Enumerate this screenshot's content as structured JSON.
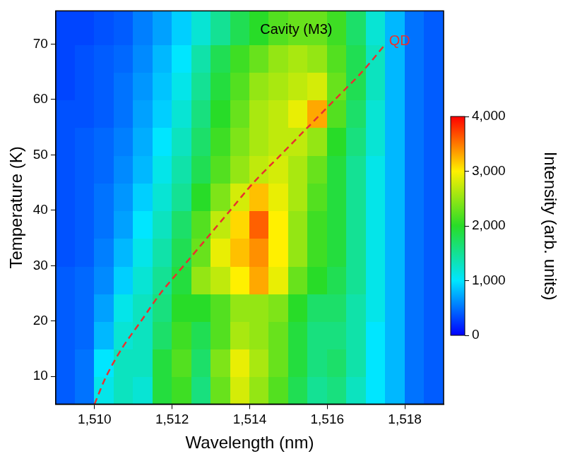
{
  "chart_data": {
    "type": "heatmap",
    "xlabel": "Wavelength (nm)",
    "ylabel": "Temperature (K)",
    "xlim": [
      1509,
      1519
    ],
    "xticks": [
      1510,
      1512,
      1514,
      1516,
      1518
    ],
    "ylim": [
      5,
      76
    ],
    "yticks": [
      10,
      20,
      30,
      40,
      50,
      60,
      70
    ],
    "grid": false,
    "x_edges": [
      1509,
      1509.5,
      1510,
      1510.5,
      1511,
      1511.5,
      1512,
      1512.5,
      1513,
      1513.5,
      1514,
      1514.5,
      1515,
      1515.5,
      1516,
      1516.5,
      1517,
      1517.5,
      1518,
      1518.5,
      1519
    ],
    "y_edges": [
      5,
      10,
      15,
      20,
      25,
      30,
      35,
      40,
      45,
      50,
      55,
      60,
      65,
      70,
      76
    ],
    "cells": [
      [
        400,
        500,
        1100,
        1300,
        1200,
        1900,
        2100,
        1600,
        2300,
        2800,
        2500,
        2200,
        1800,
        1500,
        1600,
        1300,
        1000,
        800,
        500,
        400
      ],
      [
        400,
        500,
        1000,
        1300,
        1300,
        1900,
        2200,
        1700,
        2400,
        2900,
        2600,
        2300,
        1900,
        1600,
        1700,
        1400,
        1000,
        800,
        500,
        400
      ],
      [
        400,
        450,
        800,
        1200,
        1300,
        1700,
        2100,
        1800,
        2200,
        2600,
        2500,
        2300,
        1900,
        1600,
        1600,
        1400,
        1000,
        800,
        500,
        400
      ],
      [
        400,
        450,
        700,
        1100,
        1300,
        1600,
        2000,
        2000,
        2200,
        2500,
        2500,
        2400,
        2000,
        1700,
        1700,
        1400,
        1100,
        800,
        500,
        400
      ],
      [
        400,
        450,
        600,
        900,
        1200,
        1500,
        1900,
        2500,
        2700,
        3000,
        3300,
        2900,
        2300,
        2000,
        1800,
        1500,
        1100,
        800,
        500,
        400
      ],
      [
        350,
        400,
        550,
        800,
        1100,
        1400,
        1800,
        2300,
        2900,
        3200,
        3400,
        3000,
        2500,
        2100,
        1900,
        1500,
        1100,
        800,
        500,
        400
      ],
      [
        350,
        400,
        500,
        700,
        1000,
        1300,
        1700,
        2200,
        2700,
        3100,
        3600,
        3000,
        2500,
        2100,
        1900,
        1500,
        1100,
        800,
        500,
        400
      ],
      [
        350,
        400,
        500,
        650,
        900,
        1200,
        1500,
        2000,
        2400,
        2800,
        3200,
        2900,
        2600,
        2200,
        1900,
        1500,
        1100,
        800,
        500,
        400
      ],
      [
        350,
        400,
        450,
        600,
        800,
        1100,
        1400,
        1800,
        2200,
        2500,
        2700,
        2800,
        2600,
        2300,
        1900,
        1500,
        1100,
        800,
        500,
        400
      ],
      [
        350,
        400,
        450,
        550,
        750,
        1000,
        1300,
        1700,
        2100,
        2400,
        2600,
        2700,
        2700,
        2500,
        2000,
        1600,
        1200,
        800,
        500,
        400
      ],
      [
        350,
        350,
        400,
        500,
        700,
        900,
        1200,
        1600,
        2000,
        2300,
        2600,
        2700,
        2900,
        3300,
        2200,
        1700,
        1200,
        800,
        500,
        400
      ],
      [
        300,
        350,
        400,
        500,
        650,
        850,
        1100,
        1500,
        1900,
        2200,
        2500,
        2600,
        2700,
        2800,
        2300,
        1800,
        1300,
        800,
        500,
        400
      ],
      [
        300,
        350,
        400,
        450,
        600,
        800,
        1000,
        1400,
        1800,
        2100,
        2300,
        2500,
        2600,
        2500,
        2200,
        1800,
        1300,
        800,
        500,
        400
      ],
      [
        300,
        300,
        350,
        400,
        550,
        700,
        900,
        1200,
        1500,
        1800,
        2000,
        2200,
        2300,
        2300,
        2100,
        1700,
        1200,
        800,
        500,
        400
      ]
    ],
    "colorbar": {
      "label": "Intensity (arb. units)",
      "range": [
        0,
        4000
      ],
      "ticks": [
        0,
        1000,
        2000,
        3000,
        4000
      ]
    },
    "series": [
      {
        "name": "QD",
        "color": "#e8312f",
        "line_style": "dashed",
        "x": [
          1510.0,
          1510.3,
          1510.7,
          1511.2,
          1511.7,
          1512.3,
          1512.9,
          1513.5,
          1514.1,
          1514.8,
          1515.5,
          1516.2,
          1516.9,
          1517.5
        ],
        "y": [
          5,
          10,
          15,
          20,
          25,
          30,
          35,
          40,
          45,
          50,
          55,
          60,
          65,
          70
        ]
      }
    ],
    "annotations": [
      {
        "text": "Cavity (M3)",
        "x": 1515.2,
        "y": 72.5
      }
    ]
  }
}
